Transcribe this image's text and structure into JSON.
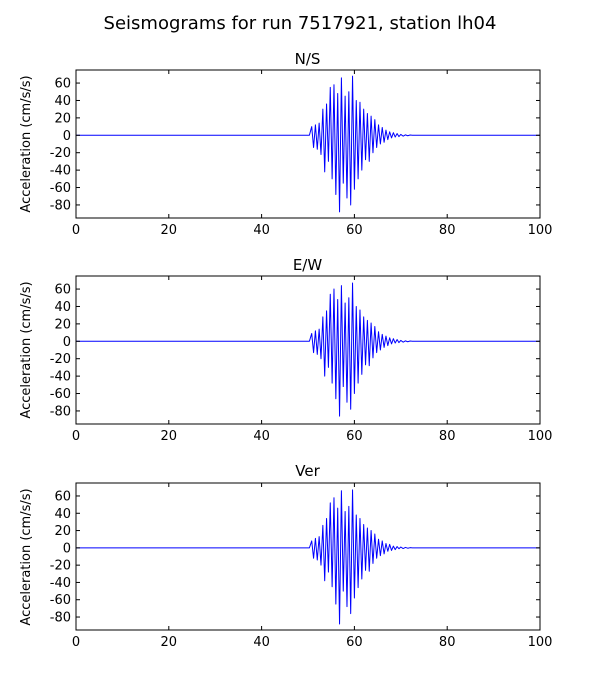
{
  "figure": {
    "suptitle": "Seismograms for run 7517921, station lh04",
    "line_color": "#0000ff"
  },
  "chart_data": [
    {
      "type": "line",
      "title": "N/S",
      "xlabel": "",
      "ylabel": "Acceleration (cm/s/s)",
      "xlim": [
        0,
        100
      ],
      "ylim": [
        -95,
        75
      ],
      "xticks": [
        0,
        20,
        40,
        60,
        80,
        100
      ],
      "yticks": [
        60,
        40,
        20,
        0,
        -20,
        -40,
        -60,
        -80
      ],
      "grid": false,
      "series": [
        {
          "color": "#0000ff",
          "x": [
            0,
            50.3,
            50.8,
            51.2,
            51.6,
            52.0,
            52.4,
            52.8,
            53.2,
            53.6,
            54.0,
            54.4,
            54.8,
            55.2,
            55.6,
            56.0,
            56.4,
            56.8,
            57.2,
            57.6,
            58.0,
            58.4,
            58.8,
            59.2,
            59.6,
            60.0,
            60.4,
            60.8,
            61.2,
            61.6,
            62.0,
            62.4,
            62.8,
            63.2,
            63.6,
            64.0,
            64.4,
            64.8,
            65.2,
            65.6,
            66.0,
            66.4,
            66.8,
            67.2,
            67.6,
            68.0,
            68.4,
            68.8,
            69.2,
            69.6,
            70.0,
            70.5,
            71.0,
            71.5,
            72.0,
            72.5,
            73.0,
            100
          ],
          "y": [
            0,
            0,
            10,
            -14,
            12,
            -16,
            14,
            -22,
            30,
            -42,
            36,
            -30,
            55,
            -50,
            58,
            -68,
            48,
            -88,
            66,
            -55,
            45,
            -72,
            50,
            -80,
            68,
            -62,
            40,
            -50,
            38,
            -40,
            30,
            -28,
            25,
            -30,
            22,
            -20,
            18,
            -14,
            12,
            -10,
            9,
            -8,
            6,
            -5,
            4,
            -3,
            3,
            -2,
            2,
            -1.5,
            1,
            -1,
            0.5,
            -0.5,
            0.3,
            0,
            0,
            0
          ]
        }
      ]
    },
    {
      "type": "line",
      "title": "E/W",
      "xlabel": "",
      "ylabel": "Acceleration (cm/s/s)",
      "xlim": [
        0,
        100
      ],
      "ylim": [
        -95,
        75
      ],
      "xticks": [
        0,
        20,
        40,
        60,
        80,
        100
      ],
      "yticks": [
        60,
        40,
        20,
        0,
        -20,
        -40,
        -60,
        -80
      ],
      "grid": false,
      "series": [
        {
          "color": "#0000ff",
          "x": [
            0,
            50.3,
            50.8,
            51.2,
            51.6,
            52.0,
            52.4,
            52.8,
            53.2,
            53.6,
            54.0,
            54.4,
            54.8,
            55.2,
            55.6,
            56.0,
            56.4,
            56.8,
            57.2,
            57.6,
            58.0,
            58.4,
            58.8,
            59.2,
            59.6,
            60.0,
            60.4,
            60.8,
            61.2,
            61.6,
            62.0,
            62.4,
            62.8,
            63.2,
            63.6,
            64.0,
            64.4,
            64.8,
            65.2,
            65.6,
            66.0,
            66.4,
            66.8,
            67.2,
            67.6,
            68.0,
            68.4,
            68.8,
            69.2,
            69.6,
            70.0,
            70.5,
            71.0,
            71.5,
            72.0,
            72.5,
            73.0,
            100
          ],
          "y": [
            0,
            0,
            9,
            -13,
            12,
            -15,
            14,
            -20,
            28,
            -40,
            35,
            -30,
            54,
            -48,
            60,
            -66,
            48,
            -86,
            64,
            -52,
            44,
            -70,
            50,
            -78,
            67,
            -60,
            40,
            -48,
            36,
            -38,
            28,
            -27,
            24,
            -28,
            21,
            -19,
            17,
            -13,
            11,
            -10,
            8,
            -7,
            6,
            -5,
            4,
            -3,
            3,
            -2,
            2,
            -1.5,
            1,
            -1,
            0.5,
            -0.5,
            0.3,
            0,
            0,
            0
          ]
        }
      ]
    },
    {
      "type": "line",
      "title": "Ver",
      "xlabel": "",
      "ylabel": "Acceleration (cm/s/s)",
      "xlim": [
        0,
        100
      ],
      "ylim": [
        -95,
        75
      ],
      "xticks": [
        0,
        20,
        40,
        60,
        80,
        100
      ],
      "yticks": [
        60,
        40,
        20,
        0,
        -20,
        -40,
        -60,
        -80
      ],
      "grid": false,
      "series": [
        {
          "color": "#0000ff",
          "x": [
            0,
            50.3,
            50.8,
            51.2,
            51.6,
            52.0,
            52.4,
            52.8,
            53.2,
            53.6,
            54.0,
            54.4,
            54.8,
            55.2,
            55.6,
            56.0,
            56.4,
            56.8,
            57.2,
            57.6,
            58.0,
            58.4,
            58.8,
            59.2,
            59.6,
            60.0,
            60.4,
            60.8,
            61.2,
            61.6,
            62.0,
            62.4,
            62.8,
            63.2,
            63.6,
            64.0,
            64.4,
            64.8,
            65.2,
            65.6,
            66.0,
            66.4,
            66.8,
            67.2,
            67.6,
            68.0,
            68.4,
            68.8,
            69.2,
            69.6,
            70.0,
            70.5,
            71.0,
            71.5,
            72.0,
            72.5,
            73.0,
            100
          ],
          "y": [
            0,
            0,
            8,
            -12,
            11,
            -14,
            13,
            -20,
            26,
            -38,
            34,
            -28,
            52,
            -45,
            58,
            -65,
            46,
            -88,
            66,
            -50,
            42,
            -68,
            48,
            -76,
            67,
            -58,
            38,
            -46,
            34,
            -36,
            27,
            -26,
            23,
            -27,
            20,
            -18,
            16,
            -12,
            10,
            -9,
            8,
            -7,
            5,
            -4,
            4,
            -3,
            2,
            -2,
            1.5,
            -1,
            1,
            -0.8,
            0.5,
            -0.4,
            0.2,
            0,
            0,
            0
          ]
        }
      ]
    }
  ]
}
